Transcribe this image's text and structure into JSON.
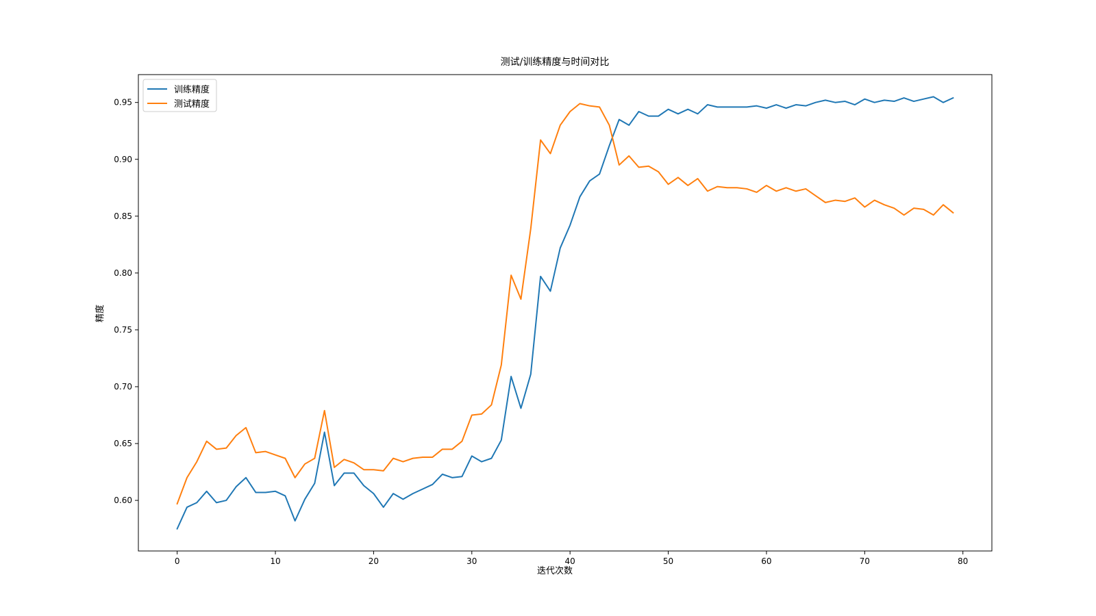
{
  "chart_data": {
    "type": "line",
    "title": "测试/训练精度与时间对比",
    "xlabel": "迭代次数",
    "ylabel": "精度",
    "xlim": [
      -3.95,
      82.95
    ],
    "ylim": [
      0.5555,
      0.9745
    ],
    "xticks": [
      0,
      10,
      20,
      30,
      40,
      50,
      60,
      70,
      80
    ],
    "yticks": [
      0.6,
      0.65,
      0.7,
      0.75,
      0.8,
      0.85,
      0.9,
      0.95
    ],
    "ytick_labels": [
      "0.60",
      "0.65",
      "0.70",
      "0.75",
      "0.80",
      "0.85",
      "0.90",
      "0.95"
    ],
    "grid": false,
    "legend_position": "top-left",
    "x": [
      0,
      1,
      2,
      3,
      4,
      5,
      6,
      7,
      8,
      9,
      10,
      11,
      12,
      13,
      14,
      15,
      16,
      17,
      18,
      19,
      20,
      21,
      22,
      23,
      24,
      25,
      26,
      27,
      28,
      29,
      30,
      31,
      32,
      33,
      34,
      35,
      36,
      37,
      38,
      39,
      40,
      41,
      42,
      43,
      44,
      45,
      46,
      47,
      48,
      49,
      50,
      51,
      52,
      53,
      54,
      55,
      56,
      57,
      58,
      59,
      60,
      61,
      62,
      63,
      64,
      65,
      66,
      67,
      68,
      69,
      70,
      71,
      72,
      73,
      74,
      75,
      76,
      77,
      78,
      79
    ],
    "series": [
      {
        "name": "训练精度",
        "color": "#1f77b4",
        "values": [
          0.575,
          0.594,
          0.598,
          0.608,
          0.598,
          0.6,
          0.612,
          0.62,
          0.607,
          0.607,
          0.608,
          0.604,
          0.582,
          0.601,
          0.615,
          0.66,
          0.613,
          0.624,
          0.624,
          0.613,
          0.606,
          0.594,
          0.606,
          0.601,
          0.606,
          0.61,
          0.614,
          0.623,
          0.62,
          0.621,
          0.639,
          0.634,
          0.637,
          0.653,
          0.709,
          0.681,
          0.711,
          0.797,
          0.784,
          0.822,
          0.842,
          0.867,
          0.881,
          0.887,
          0.912,
          0.935,
          0.93,
          0.942,
          0.938,
          0.938,
          0.944,
          0.94,
          0.944,
          0.94,
          0.948,
          0.946,
          0.946,
          0.946,
          0.946,
          0.947,
          0.945,
          0.948,
          0.945,
          0.948,
          0.947,
          0.95,
          0.952,
          0.95,
          0.951,
          0.948,
          0.953,
          0.95,
          0.952,
          0.951,
          0.954,
          0.951,
          0.953,
          0.955,
          0.95,
          0.954
        ]
      },
      {
        "name": "测试精度",
        "color": "#ff7f0e",
        "values": [
          0.597,
          0.62,
          0.634,
          0.652,
          0.645,
          0.646,
          0.657,
          0.664,
          0.642,
          0.643,
          0.64,
          0.637,
          0.62,
          0.632,
          0.637,
          0.679,
          0.629,
          0.636,
          0.633,
          0.627,
          0.627,
          0.626,
          0.637,
          0.634,
          0.637,
          0.638,
          0.638,
          0.645,
          0.645,
          0.652,
          0.675,
          0.676,
          0.684,
          0.719,
          0.798,
          0.777,
          0.839,
          0.917,
          0.905,
          0.93,
          0.942,
          0.949,
          0.947,
          0.946,
          0.93,
          0.895,
          0.903,
          0.893,
          0.894,
          0.889,
          0.878,
          0.884,
          0.877,
          0.883,
          0.872,
          0.876,
          0.875,
          0.875,
          0.874,
          0.871,
          0.877,
          0.872,
          0.875,
          0.872,
          0.874,
          0.868,
          0.862,
          0.864,
          0.863,
          0.866,
          0.858,
          0.864,
          0.86,
          0.857,
          0.851,
          0.857,
          0.856,
          0.851,
          0.86,
          0.853
        ]
      }
    ]
  }
}
